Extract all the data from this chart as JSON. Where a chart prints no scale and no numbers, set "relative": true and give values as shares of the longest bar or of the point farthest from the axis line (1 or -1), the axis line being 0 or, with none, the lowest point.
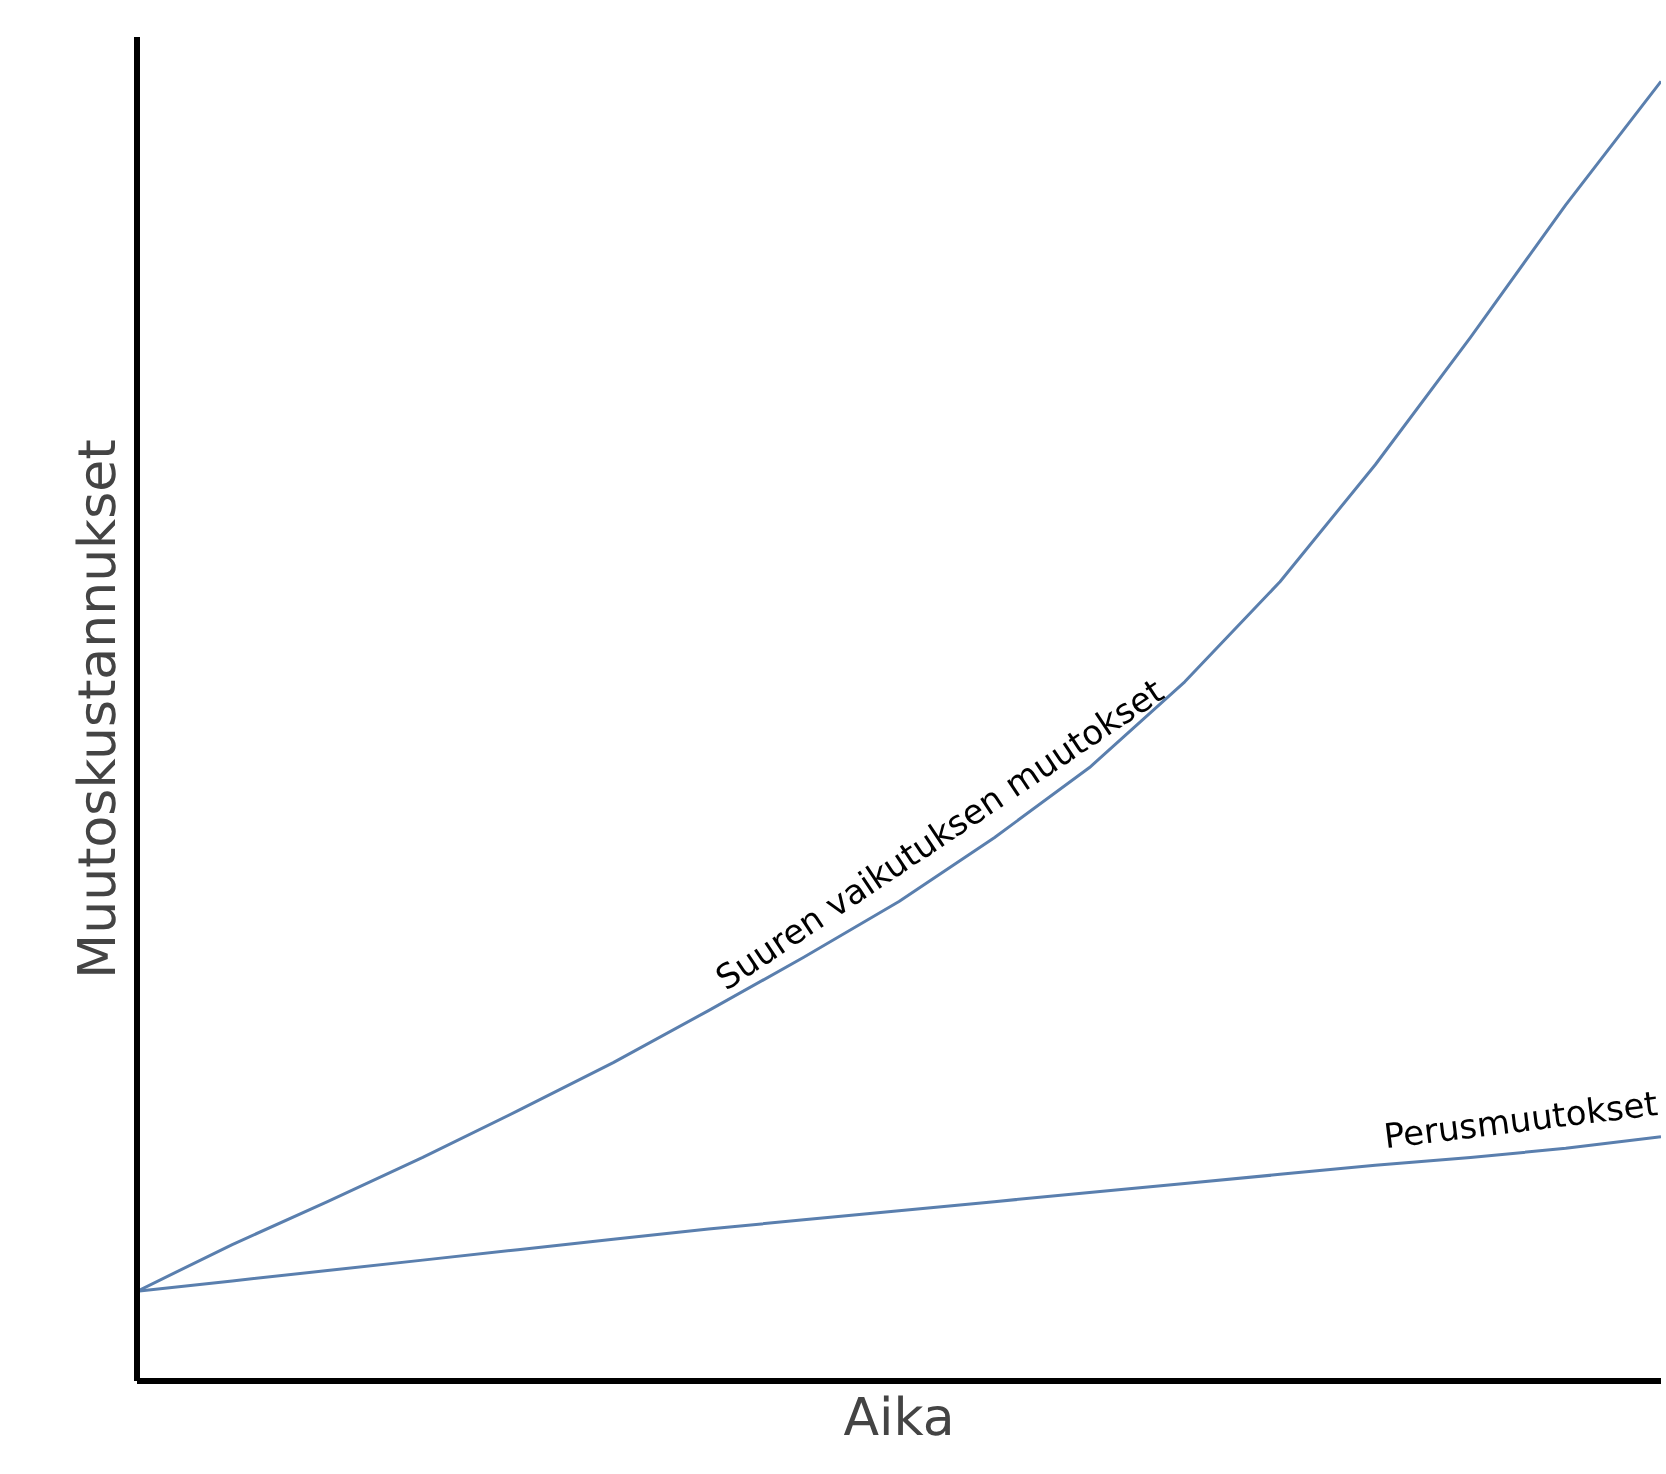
{
  "chart_data": {
    "type": "line",
    "relative": true,
    "xlabel": "Aika",
    "ylabel": "Muutoskustannukset",
    "marker": "none",
    "line_style": "solid",
    "categories": [
      null,
      null,
      null,
      null,
      null,
      null,
      null,
      null,
      null,
      null,
      null,
      null,
      null,
      null,
      null,
      null,
      null
    ],
    "series": [
      {
        "name": "Suuren vaikutuksen muutokset",
        "color": "#5a7fae",
        "values": [
          0.069,
          0.105,
          0.138,
          0.172,
          0.208,
          0.245,
          0.285,
          0.326,
          0.369,
          0.418,
          0.472,
          0.538,
          0.615,
          0.705,
          0.803,
          0.905,
          1
        ]
      },
      {
        "name": "Perusmuutokset",
        "color": "#5a7fae",
        "values": [
          0.069,
          0.077,
          0.085,
          0.093,
          0.101,
          0.109,
          0.117,
          0.124,
          0.131,
          0.138,
          0.145,
          0.152,
          0.159,
          0.166,
          0.172,
          0.179,
          0.188
        ]
      }
    ]
  }
}
